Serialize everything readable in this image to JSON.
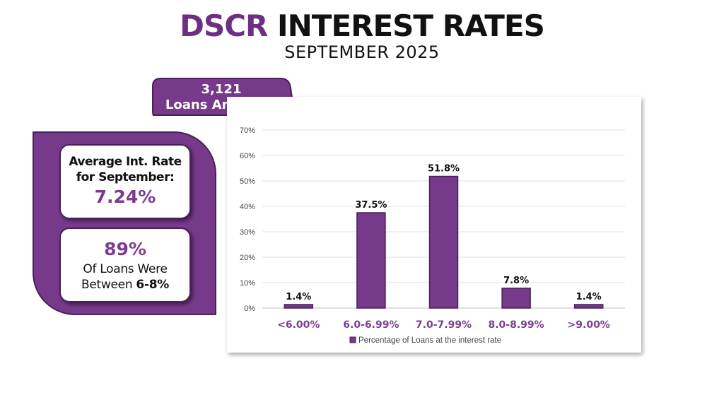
{
  "header": {
    "title_accent": "DSCR",
    "title_rest": " INTEREST RATES",
    "subtitle": "SEPTEMBER 2025"
  },
  "tab": {
    "count": "3,121",
    "label": "Loans Analyzed"
  },
  "stats": {
    "avg_label_1": "Average Int. Rate",
    "avg_label_2": "for September:",
    "avg_value": "7.24%",
    "share_value": "89%",
    "share_label_1": "Of Loans Were",
    "share_label_2_prefix": "Between ",
    "share_label_2_bold": "6-8%"
  },
  "colors": {
    "bar": "#77398a",
    "accent": "#7b3e8f",
    "dark": "#4a1f5a"
  },
  "chart_data": {
    "type": "bar",
    "categories": [
      "<6.00%",
      "6.0-6.99%",
      "7.0-7.99%",
      "8.0-8.99%",
      ">9.00%"
    ],
    "series": [
      {
        "name": "Percentage of Loans at the interest rate",
        "values": [
          1.4,
          37.5,
          51.8,
          7.8,
          1.4
        ]
      }
    ],
    "data_labels": [
      "1.4%",
      "37.5%",
      "51.8%",
      "7.8%",
      "1.4%"
    ],
    "yticks": [
      "0%",
      "10%",
      "20%",
      "30%",
      "40%",
      "50%",
      "60%",
      "70%"
    ],
    "ylim": [
      0,
      70
    ],
    "grid": true,
    "legend": "bottom"
  }
}
